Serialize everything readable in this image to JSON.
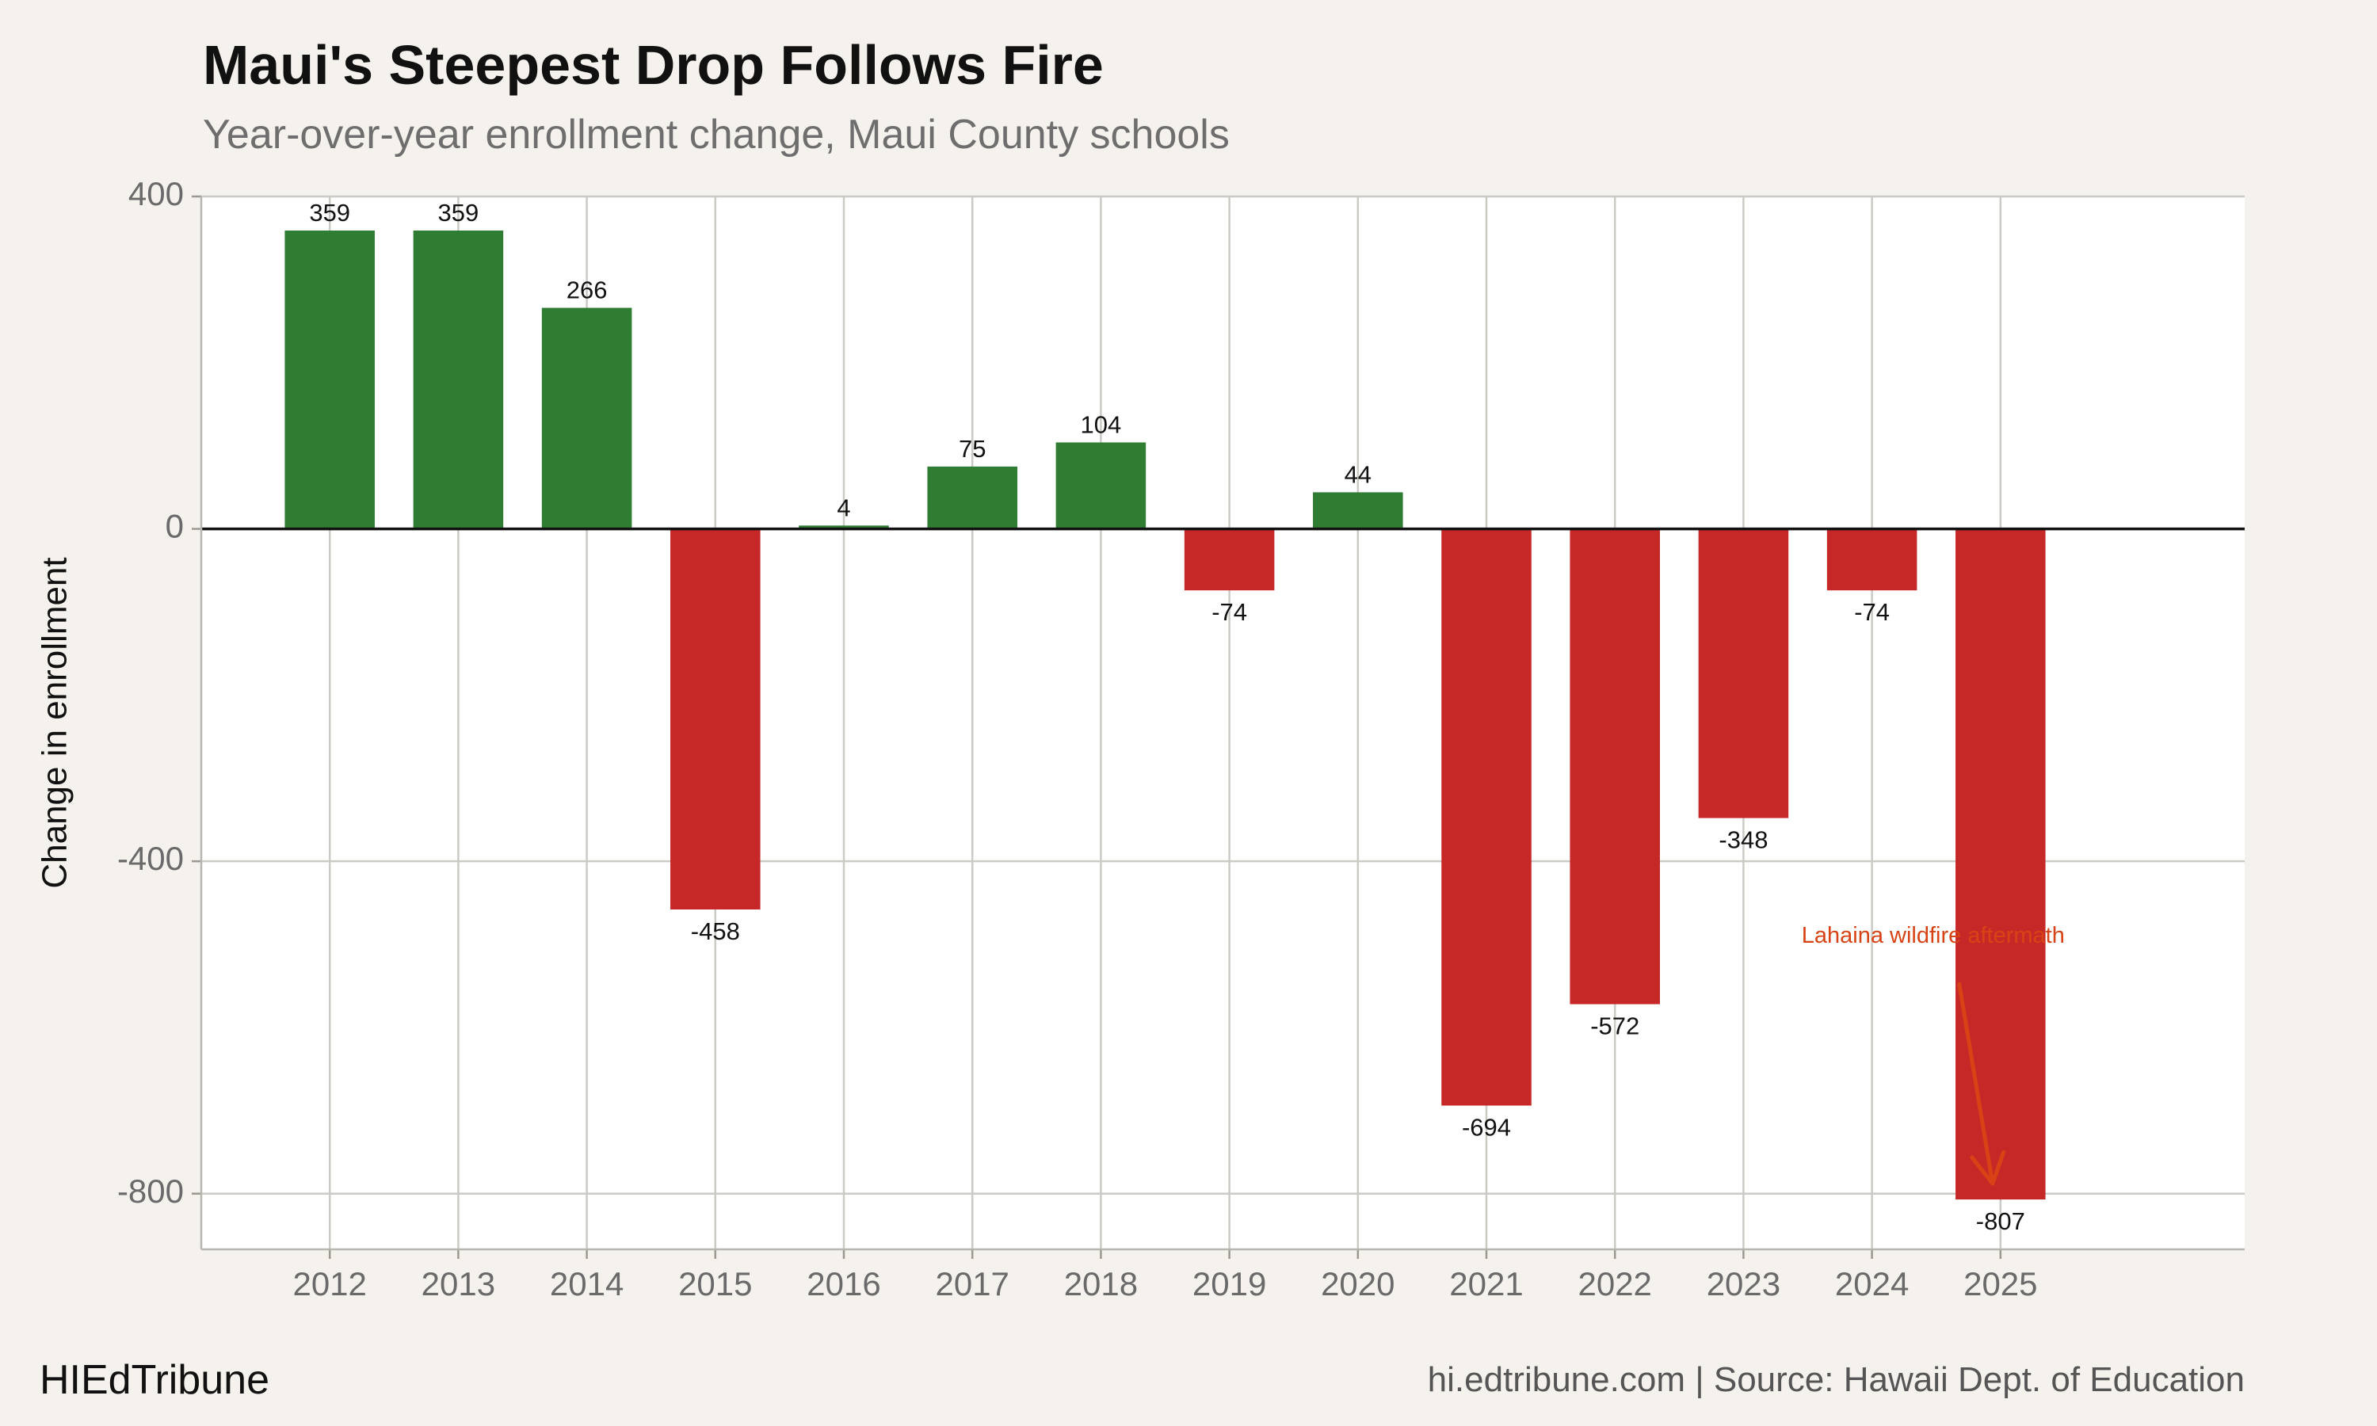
{
  "header": {
    "title": "Maui's Steepest Drop Follows Fire",
    "subtitle": "Year-over-year enrollment change, Maui County schools"
  },
  "footer": {
    "brand": "HIEdTribune",
    "source": "hi.edtribune.com | Source: Hawaii Dept. of Education"
  },
  "colors": {
    "positive": "#2e7d32",
    "negative": "#c62828",
    "annotation": "#d84315",
    "grid": "#cccac5",
    "panel": "#ffffff",
    "zero_line": "#111111"
  },
  "chart_data": {
    "type": "bar",
    "title": "Maui's Steepest Drop Follows Fire",
    "subtitle": "Year-over-year enrollment change, Maui County schools",
    "xlabel": "",
    "ylabel": "Change in enrollment",
    "categories": [
      "2012",
      "2013",
      "2014",
      "2015",
      "2016",
      "2017",
      "2018",
      "2019",
      "2020",
      "2021",
      "2022",
      "2023",
      "2024",
      "2025"
    ],
    "values": [
      359,
      359,
      266,
      -458,
      4,
      75,
      104,
      -74,
      44,
      -694,
      -572,
      -348,
      -74,
      -807
    ],
    "labels": [
      "359",
      "359",
      "266",
      "-458",
      "4",
      "75",
      "104",
      "-74",
      "44",
      "-694",
      "-572",
      "-348",
      "-74",
      "-807"
    ],
    "ylim": [
      -867,
      400
    ],
    "yticks": [
      400,
      0,
      -400,
      -800
    ],
    "ytick_labels": [
      "400",
      "0",
      "-400",
      "-800"
    ],
    "xlim": [
      2011,
      2026.9
    ],
    "grid": true,
    "annotation": {
      "text": "Lahaina wildfire aftermath",
      "target_category": "2025",
      "target_value": -807
    }
  }
}
